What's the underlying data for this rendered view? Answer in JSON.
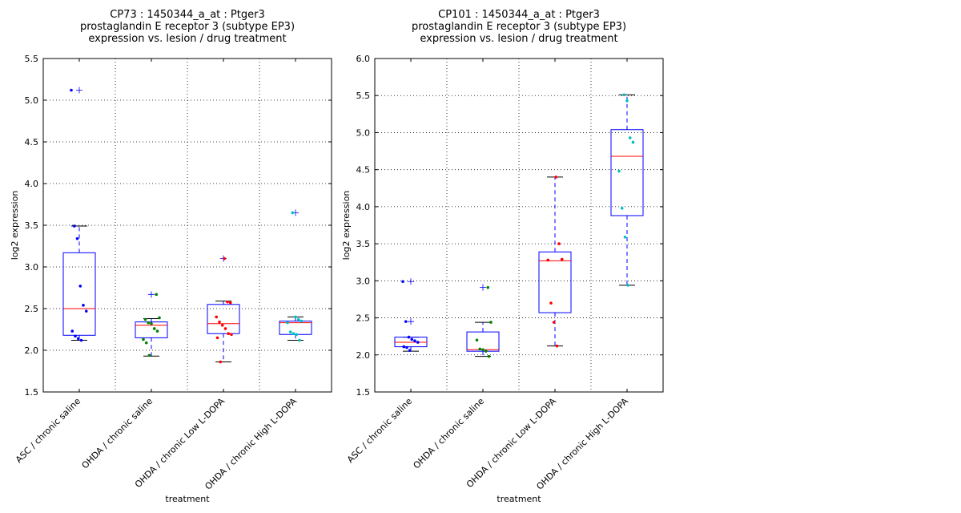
{
  "chart_data": [
    {
      "type": "box",
      "title": [
        "CP73 : 1450344_a_at : Ptger3",
        "prostaglandin E receptor 3 (subtype EP3)",
        "expression vs. lesion / drug treatment"
      ],
      "xlabel": "treatment",
      "ylabel": "log2 expression",
      "categories": [
        "ASC / chronic saline",
        "OHDA / chronic saline",
        "OHDA / chronic Low L-DOPA",
        "OHDA / chronic High L-DOPA"
      ],
      "ylim": [
        1.5,
        5.5
      ],
      "yticks": [
        1.5,
        {
          "value": 2,
          "label": "2.0"
        },
        2.5,
        {
          "value": 3,
          "label": "3.0"
        },
        3.5,
        {
          "value": 4,
          "label": "4.0"
        },
        4.5,
        {
          "value": 5,
          "label": "5.0"
        },
        5.5
      ],
      "grid": true,
      "box_color": "#0000ff",
      "median_color": "#ff0000",
      "boxes": [
        {
          "whislo": 2.12,
          "q1": 2.18,
          "med": 2.5,
          "q3": 3.17,
          "whishi": 3.49,
          "fliers": [
            5.12
          ]
        },
        {
          "whislo": 1.93,
          "q1": 2.15,
          "med": 2.3,
          "q3": 2.34,
          "whishi": 2.38,
          "fliers": [
            2.67
          ]
        },
        {
          "whislo": 1.86,
          "q1": 2.2,
          "med": 2.32,
          "q3": 2.55,
          "whishi": 2.59,
          "fliers": [
            3.1
          ]
        },
        {
          "whislo": 2.12,
          "q1": 2.19,
          "med": 2.33,
          "q3": 2.35,
          "whishi": 2.4,
          "fliers": [
            3.65
          ]
        }
      ],
      "points": [
        {
          "color": "#0000ff",
          "values": [
            5.12,
            3.49,
            3.34,
            2.77,
            2.54,
            2.47,
            2.23,
            2.17,
            2.14,
            2.12
          ]
        },
        {
          "color": "#008000",
          "values": [
            2.67,
            2.39,
            2.37,
            2.33,
            2.32,
            2.26,
            2.23,
            2.13,
            2.09,
            1.94
          ]
        },
        {
          "color": "#ff0000",
          "values": [
            3.1,
            2.58,
            2.57,
            2.4,
            2.34,
            2.3,
            2.26,
            2.2,
            2.19,
            2.15,
            1.86
          ]
        },
        {
          "color": "#00bfbf",
          "values": [
            3.65,
            2.4,
            2.37,
            2.35,
            2.33,
            2.22,
            2.2,
            2.19,
            2.12
          ]
        }
      ]
    },
    {
      "type": "box",
      "title": [
        "CP101 : 1450344_a_at : Ptger3",
        "prostaglandin E receptor 3 (subtype EP3)",
        "expression vs. lesion / drug treatment"
      ],
      "xlabel": "treatment",
      "ylabel": "log2 expression",
      "categories": [
        "ASC / chronic saline",
        "OHDA / chronic saline",
        "OHDA / chronic Low L-DOPA",
        "OHDA / chronic High L-DOPA"
      ],
      "ylim": [
        1.5,
        6
      ],
      "yticks": [
        1.5,
        {
          "value": 2,
          "label": "2.0"
        },
        2.5,
        {
          "value": 3,
          "label": "3.0"
        },
        3.5,
        {
          "value": 4,
          "label": "4.0"
        },
        4.5,
        {
          "value": 5,
          "label": "5.0"
        },
        5.5,
        {
          "value": 6,
          "label": "6.0"
        }
      ],
      "grid": true,
      "box_color": "#0000ff",
      "median_color": "#ff0000",
      "boxes": [
        {
          "whislo": 2.05,
          "q1": 2.11,
          "med": 2.17,
          "q3": 2.24,
          "whishi": 2.24,
          "fliers": [
            2.99,
            2.45
          ]
        },
        {
          "whislo": 1.98,
          "q1": 2.05,
          "med": 2.07,
          "q3": 2.31,
          "whishi": 2.44,
          "fliers": [
            2.91
          ]
        },
        {
          "whislo": 2.12,
          "q1": 2.57,
          "med": 3.27,
          "q3": 3.39,
          "whishi": 4.4,
          "fliers": []
        },
        {
          "whislo": 2.94,
          "q1": 3.88,
          "med": 4.68,
          "q3": 5.04,
          "whishi": 5.51,
          "fliers": []
        }
      ],
      "points": [
        {
          "color": "#0000ff",
          "values": [
            2.99,
            2.45,
            2.24,
            2.21,
            2.19,
            2.17,
            2.11,
            2.1,
            2.06
          ]
        },
        {
          "color": "#008000",
          "values": [
            2.91,
            2.44,
            2.2,
            2.08,
            2.07,
            2.05,
            1.98
          ]
        },
        {
          "color": "#ff0000",
          "values": [
            4.4,
            3.5,
            3.29,
            3.28,
            2.7,
            2.44,
            2.12
          ]
        },
        {
          "color": "#00bfbf",
          "values": [
            5.51,
            5.43,
            4.93,
            4.87,
            4.48,
            3.98,
            3.59,
            2.94
          ]
        }
      ]
    }
  ]
}
